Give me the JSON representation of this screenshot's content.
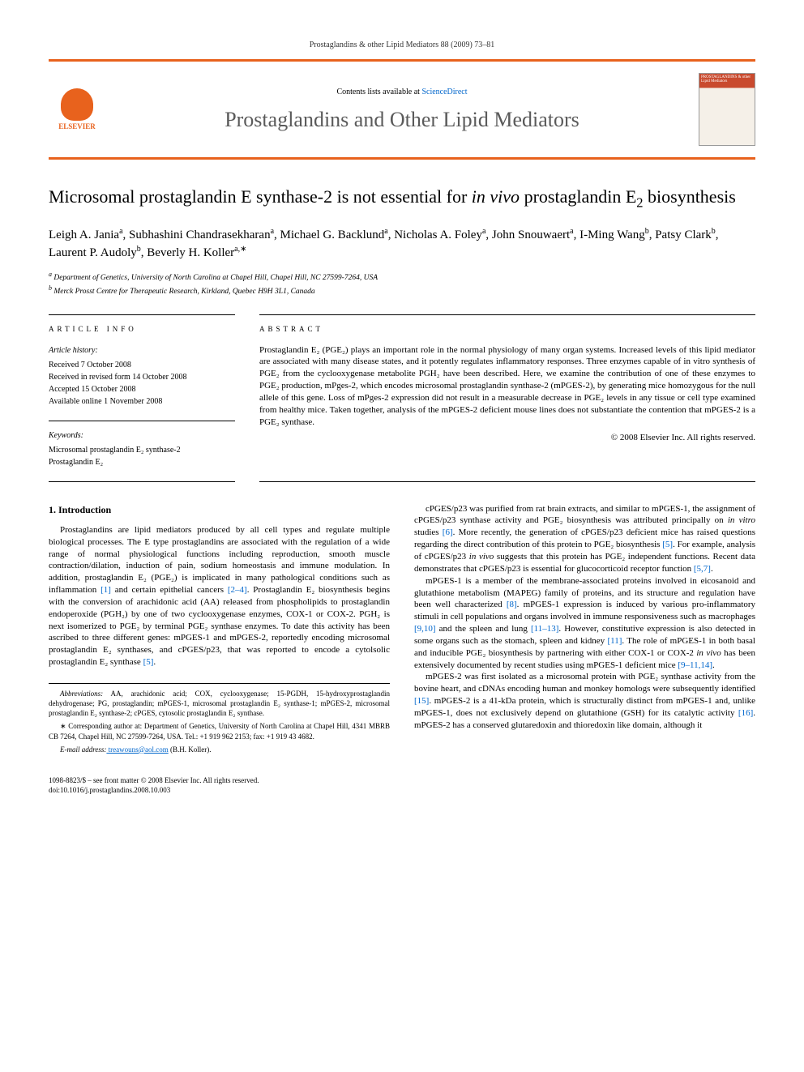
{
  "journal_ref": "Prostaglandins & other Lipid Mediators 88 (2009) 73–81",
  "header": {
    "publisher_name": "ELSEVIER",
    "contents_prefix": "Contents lists available at ",
    "contents_link": "ScienceDirect",
    "journal_name": "Prostaglandins and Other Lipid Mediators",
    "cover_text": "PROSTAGLANDINS & other Lipid Mediators"
  },
  "title_parts": {
    "pre": "Microsomal prostaglandin E synthase-2 is not essential for ",
    "italic": "in vivo",
    "post": " prostaglandin E",
    "sub": "2",
    "tail": " biosynthesis"
  },
  "authors_html": "Leigh A. Jania<sup>a</sup>, Subhashini Chandrasekharan<sup>a</sup>, Michael G. Backlund<sup>a</sup>, Nicholas A. Foley<sup>a</sup>, John Snouwaert<sup>a</sup>, I-Ming Wang<sup>b</sup>, Patsy Clark<sup>b</sup>, Laurent P. Audoly<sup>b</sup>, Beverly H. Koller<sup>a,∗</sup>",
  "affiliations": [
    "a Department of Genetics, University of North Carolina at Chapel Hill, Chapel Hill, NC 27599-7264, USA",
    "b Merck Prosst Centre for Therapeutic Research, Kirkland, Quebec H9H 3L1, Canada"
  ],
  "article_info": {
    "heading": "article info",
    "history_label": "Article history:",
    "history": [
      "Received 7 October 2008",
      "Received in revised form 14 October 2008",
      "Accepted 15 October 2008",
      "Available online 1 November 2008"
    ],
    "keywords_label": "Keywords:",
    "keywords": [
      "Microsomal prostaglandin E₂ synthase-2",
      "Prostaglandin E₂"
    ]
  },
  "abstract": {
    "heading": "abstract",
    "text": "Prostaglandin E₂ (PGE₂) plays an important role in the normal physiology of many organ systems. Increased levels of this lipid mediator are associated with many disease states, and it potently regulates inflammatory responses. Three enzymes capable of in vitro synthesis of PGE₂ from the cyclooxygenase metabolite PGH₂ have been described. Here, we examine the contribution of one of these enzymes to PGE₂ production, mPges-2, which encodes microsomal prostaglandin synthase-2 (mPGES-2), by generating mice homozygous for the null allele of this gene. Loss of mPges-2 expression did not result in a measurable decrease in PGE₂ levels in any tissue or cell type examined from healthy mice. Taken together, analysis of the mPGES-2 deficient mouse lines does not substantiate the contention that mPGES-2 is a PGE₂ synthase.",
    "copyright": "© 2008 Elsevier Inc. All rights reserved."
  },
  "body": {
    "section_heading": "1. Introduction",
    "col1_paras": [
      "Prostaglandins are lipid mediators produced by all cell types and regulate multiple biological processes. The E type prostaglandins are associated with the regulation of a wide range of normal physiological functions including reproduction, smooth muscle contraction/dilation, induction of pain, sodium homeostasis and immune modulation. In addition, prostaglandin E₂ (PGE₂) is implicated in many pathological conditions such as inflammation [1] and certain epithelial cancers [2–4]. Prostaglandin E₂ biosynthesis begins with the conversion of arachidonic acid (AA) released from phospholipids to prostaglandin endoperoxide (PGH₂) by one of two cyclooxygenase enzymes, COX-1 or COX-2. PGH₂ is next isomerized to PGE₂ by terminal PGE₂ synthase enzymes. To date this activity has been ascribed to three different genes: mPGES-1 and mPGES-2, reportedly encoding microsomal prostaglandin E₂ synthases, and cPGES/p23, that was reported to encode a cytolsolic prostaglandin E₂ synthase [5]."
    ],
    "col2_paras": [
      "cPGES/p23 was purified from rat brain extracts, and similar to mPGES-1, the assignment of cPGES/p23 synthase activity and PGE₂ biosynthesis was attributed principally on in vitro studies [6]. More recently, the generation of cPGES/p23 deficient mice has raised questions regarding the direct contribution of this protein to PGE₂ biosynthesis [5]. For example, analysis of cPGES/p23 in vivo suggests that this protein has PGE₂ independent functions. Recent data demonstrates that cPGES/p23 is essential for glucocorticoid receptor function [5,7].",
      "mPGES-1 is a member of the membrane-associated proteins involved in eicosanoid and glutathione metabolism (MAPEG) family of proteins, and its structure and regulation have been well characterized [8]. mPGES-1 expression is induced by various pro-inflammatory stimuli in cell populations and organs involved in immune responsiveness such as macrophages [9,10] and the spleen and lung [11–13]. However, constitutive expression is also detected in some organs such as the stomach, spleen and kidney [11]. The role of mPGES-1 in both basal and inducible PGE₂ biosynthesis by partnering with either COX-1 or COX-2 in vivo has been extensively documented by recent studies using mPGES-1 deficient mice [9–11,14].",
      "mPGES-2 was first isolated as a microsomal protein with PGE₂ synthase activity from the bovine heart, and cDNAs encoding human and monkey homologs were subsequently identified [15]. mPGES-2 is a 41-kDa protein, which is structurally distinct from mPGES-1 and, unlike mPGES-1, does not exclusively depend on glutathione (GSH) for its catalytic activity [16]. mPGES-2 has a conserved glutaredoxin and thioredoxin like domain, although it"
    ]
  },
  "footnotes": {
    "abbrev_label": "Abbreviations:",
    "abbrev_text": " AA, arachidonic acid; COX, cyclooxygenase; 15-PGDH, 15-hydroxyprostaglandin dehydrogenase; PG, prostaglandin; mPGES-1, microsomal prostaglandin E₂ synthase-1; mPGES-2, microsomal prostaglandin E₂ synthase-2; cPGES, cytosolic prostaglandin E₂ synthase.",
    "corr_label": "∗ Corresponding author at:",
    "corr_text": " Department of Genetics, University of North Carolina at Chapel Hill, 4341 MBRB CB 7264, Chapel Hill, NC 27599-7264, USA. Tel.: +1 919 962 2153; fax: +1 919 43 4682.",
    "email_label": "E-mail address:",
    "email_value": " treawouns@aol.com",
    "email_tail": " (B.H. Koller)."
  },
  "footer": {
    "line1": "1098-8823/$ – see front matter © 2008 Elsevier Inc. All rights reserved.",
    "line2": "doi:10.1016/j.prostaglandins.2008.10.003"
  },
  "colors": {
    "accent": "#e8621d",
    "link": "#0066cc",
    "text": "#000000",
    "muted": "#5a5a5a"
  }
}
